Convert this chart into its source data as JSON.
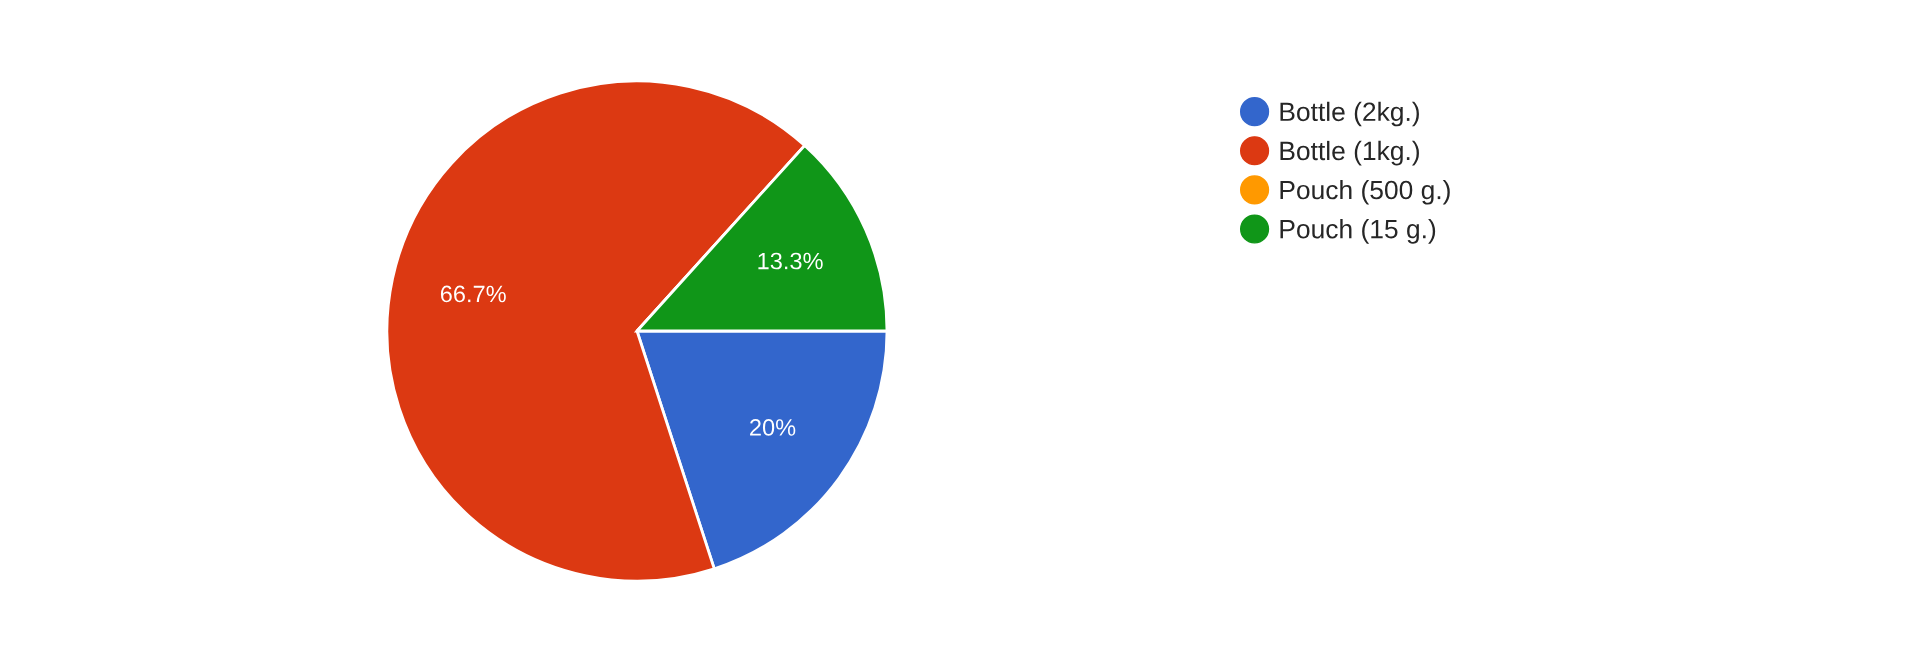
{
  "chart_data": {
    "type": "pie",
    "categories": [
      "Bottle (2kg.)",
      "Bottle (1kg.)",
      "Pouch (500 g.)",
      "Pouch (15 g.)"
    ],
    "values": [
      20,
      66.7,
      0,
      13.3
    ],
    "value_labels": [
      "20%",
      "66.7%",
      null,
      "13.3%"
    ],
    "colors": [
      "#3366cc",
      "#dc3912",
      "#ff9900",
      "#109618"
    ],
    "legend": "right"
  }
}
